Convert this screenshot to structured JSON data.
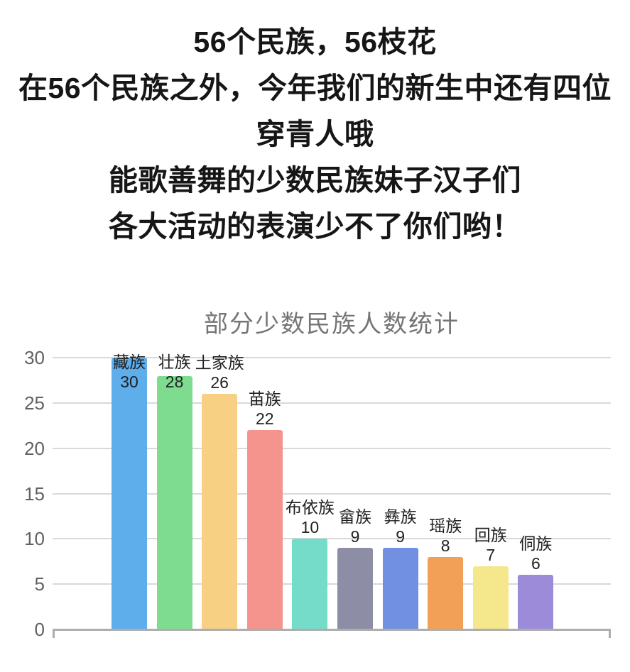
{
  "page": {
    "intro_lines": [
      "56个民族，56枝花",
      "在56个民族之外，今年我们的新生中还有四位",
      "穿青人哦",
      "能歌善舞的少数民族妹子汉子们",
      "各大活动的表演少不了你们哟！"
    ],
    "text_color": "#161616"
  },
  "chart_data": {
    "type": "bar",
    "title": "部分少数民族人数统计",
    "categories": [
      "藏族",
      "壮族",
      "土家族",
      "苗族",
      "布依族",
      "畲族",
      "彝族",
      "瑶族",
      "回族",
      "侗族"
    ],
    "values": [
      30,
      28,
      26,
      22,
      10,
      9,
      9,
      8,
      7,
      6
    ],
    "bar_colors": [
      "#5FAEEC",
      "#7EDC90",
      "#F8D084",
      "#F4948D",
      "#74DCC9",
      "#8E8DA6",
      "#7190E2",
      "#F2A058",
      "#F4E78C",
      "#9C8BD8"
    ],
    "xlabel": "",
    "ylabel": "",
    "ylim": [
      0,
      30
    ],
    "yticks": [
      0,
      5,
      10,
      15,
      20,
      25,
      30
    ],
    "grid": true,
    "legend": "none",
    "value_labels": "above-bars (category name over value)",
    "title_color": "#757575",
    "axis_text_color": "#616161",
    "bar_label_color": "#212121",
    "gridline_color": "#d9d9d9",
    "baseline_color": "#aeaeae"
  }
}
